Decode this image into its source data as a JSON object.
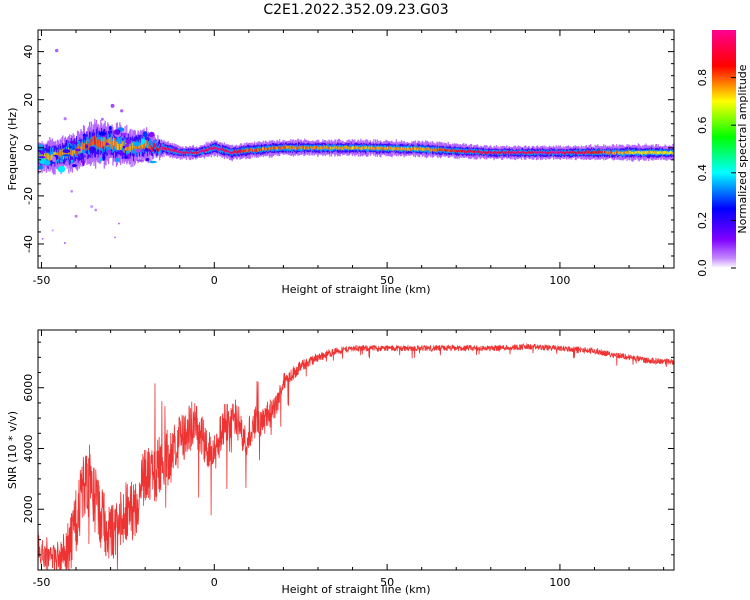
{
  "title": "C2E1.2022.352.09.23.G03",
  "chart_data": [
    {
      "type": "heatmap",
      "xlabel": "Height of straight line (km)",
      "ylabel": "Frequency (Hz)",
      "xlim": [
        -51,
        133
      ],
      "ylim": [
        -50,
        49
      ],
      "xticks": [
        -50,
        0,
        50,
        100
      ],
      "yticks": [
        -40,
        -20,
        0,
        20,
        40
      ],
      "ridge": {
        "x": [
          -51,
          -45,
          -40,
          -35,
          -30,
          -25,
          -20,
          -15,
          -10,
          -5,
          0,
          5,
          10,
          20,
          40,
          60,
          80,
          100,
          120,
          133
        ],
        "freq": [
          -4,
          -3,
          -1,
          2,
          2,
          0,
          1,
          0,
          -2,
          -2,
          0,
          -2,
          -1,
          0,
          0,
          -0.5,
          -2,
          -2,
          -2,
          -2
        ],
        "amplitude": [
          0.45,
          0.5,
          0.55,
          0.6,
          0.55,
          0.5,
          0.55,
          0.9,
          0.95,
          0.85,
          0.95,
          0.9,
          0.6,
          0.55,
          0.5,
          0.5,
          0.85,
          0.9,
          0.45,
          0.4
        ],
        "spread": [
          6,
          6,
          7,
          8,
          8,
          7,
          6,
          3,
          2.5,
          2.5,
          3,
          3,
          3,
          3,
          3,
          3,
          2.5,
          2.5,
          3,
          3
        ]
      }
    },
    {
      "type": "line",
      "xlabel": "Height of straight line (km)",
      "ylabel": "SNR (10 * v/v)",
      "xlim": [
        -51,
        133
      ],
      "ylim": [
        0,
        7900
      ],
      "xticks": [
        -50,
        0,
        50,
        100
      ],
      "yticks": [
        2000,
        4000,
        6000
      ],
      "color": "#ee3333",
      "series": [
        {
          "x": [
            -51,
            -48,
            -45,
            -42,
            -40,
            -38,
            -36,
            -34,
            -32,
            -30,
            -28,
            -26,
            -24,
            -22,
            -20,
            -18,
            -15,
            -12,
            -10,
            -8,
            -6,
            -4,
            -2,
            0,
            3,
            6,
            9,
            12,
            15,
            18,
            20,
            25,
            30,
            35,
            40,
            50,
            60,
            70,
            80,
            90,
            100,
            110,
            120,
            125,
            133
          ],
          "values": [
            700,
            350,
            400,
            600,
            1600,
            2500,
            3000,
            2000,
            1800,
            1200,
            1400,
            2000,
            1900,
            2200,
            3200,
            3000,
            3600,
            3800,
            4200,
            4600,
            4800,
            4500,
            4000,
            3800,
            4800,
            5100,
            4300,
            4800,
            5000,
            5400,
            6200,
            6700,
            7000,
            7200,
            7300,
            7300,
            7300,
            7300,
            7300,
            7350,
            7300,
            7200,
            7000,
            6900,
            6850
          ],
          "noise": [
            500,
            400,
            600,
            900,
            1100,
            1200,
            1200,
            1200,
            1200,
            1100,
            1000,
            1000,
            1000,
            1000,
            1000,
            1000,
            1000,
            900,
            900,
            800,
            800,
            700,
            700,
            700,
            700,
            650,
            600,
            600,
            500,
            400,
            300,
            200,
            150,
            120,
            100,
            100,
            100,
            100,
            100,
            100,
            100,
            100,
            100,
            100,
            100
          ]
        }
      ]
    }
  ],
  "colorbar": {
    "label": "Normalized spectral amplitude",
    "range": [
      0,
      1
    ],
    "ticks": [
      "0.0",
      "0.2",
      "0.4",
      "0.6",
      "0.8"
    ]
  }
}
